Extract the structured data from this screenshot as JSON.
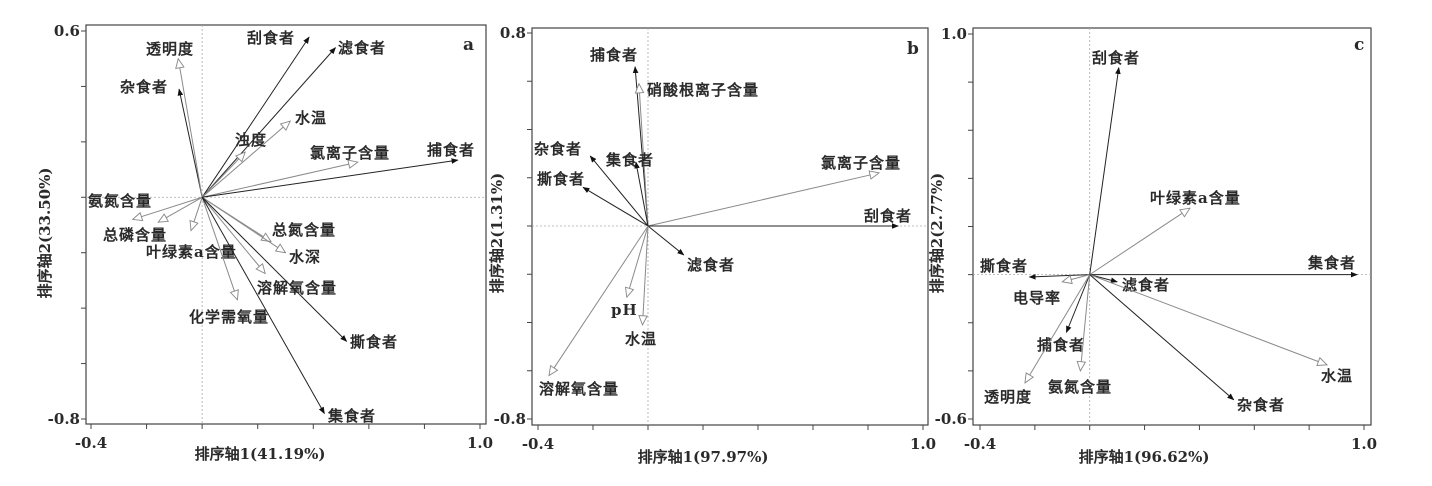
{
  "chart_data": [
    {
      "type": "scatter",
      "subtype": "rda-biplot",
      "panel_label": "a",
      "xlabel": "排序轴1(41.19%)",
      "ylabel": "排序轴2(33.50%)",
      "xlim": [
        -0.4,
        1.0
      ],
      "ylim": [
        -0.8,
        0.6
      ],
      "x_tick_labels": [
        "-0.4",
        "1.0"
      ],
      "y_tick_labels": [
        "0.6",
        "-0.8"
      ],
      "vectors": [
        {
          "name": "刮食者",
          "x": 0.385,
          "y": 0.578,
          "kind": "species"
        },
        {
          "name": "滤食者",
          "x": 0.48,
          "y": 0.54,
          "kind": "species"
        },
        {
          "name": "杂食者",
          "x": -0.083,
          "y": 0.39,
          "kind": "species"
        },
        {
          "name": "透明度",
          "x": -0.086,
          "y": 0.5,
          "kind": "environment"
        },
        {
          "name": "水温",
          "x": 0.317,
          "y": 0.275,
          "kind": "environment"
        },
        {
          "name": "浊度",
          "x": 0.155,
          "y": 0.163,
          "kind": "environment"
        },
        {
          "name": "氯离子含量",
          "x": 0.56,
          "y": 0.127,
          "kind": "environment"
        },
        {
          "name": "捕食者",
          "x": 0.92,
          "y": 0.134,
          "kind": "species"
        },
        {
          "name": "氨氮含量",
          "x": -0.25,
          "y": -0.08,
          "kind": "environment"
        },
        {
          "name": "总磷含量",
          "x": -0.158,
          "y": -0.09,
          "kind": "environment"
        },
        {
          "name": "叶绿素a含量",
          "x": -0.04,
          "y": -0.12,
          "kind": "environment"
        },
        {
          "name": "总氮含量",
          "x": 0.248,
          "y": -0.16,
          "kind": "environment"
        },
        {
          "name": "水深",
          "x": 0.3,
          "y": -0.2,
          "kind": "environment"
        },
        {
          "name": "溶解氧含量",
          "x": 0.227,
          "y": -0.275,
          "kind": "environment"
        },
        {
          "name": "化学需氧量",
          "x": 0.127,
          "y": -0.37,
          "kind": "environment"
        },
        {
          "name": "撕食者",
          "x": 0.52,
          "y": -0.52,
          "kind": "species"
        },
        {
          "name": "集食者",
          "x": 0.44,
          "y": -0.78,
          "kind": "species"
        }
      ]
    },
    {
      "type": "scatter",
      "subtype": "rda-biplot",
      "panel_label": "b",
      "xlabel": "排序轴1(97.97%)",
      "ylabel": "排序轴2(1.31%)",
      "xlim": [
        -0.4,
        1.0
      ],
      "ylim": [
        -0.8,
        0.8
      ],
      "x_tick_labels": [
        "-0.4",
        "1.0"
      ],
      "y_tick_labels": [
        "0.8",
        "-0.8"
      ],
      "vectors": [
        {
          "name": "捕食者",
          "x": -0.047,
          "y": 0.66,
          "kind": "species"
        },
        {
          "name": "硝酸根离子含量",
          "x": -0.033,
          "y": 0.59,
          "kind": "environment"
        },
        {
          "name": "杂食者",
          "x": -0.21,
          "y": 0.29,
          "kind": "species"
        },
        {
          "name": "集食者",
          "x": -0.044,
          "y": 0.265,
          "kind": "species"
        },
        {
          "name": "撕食者",
          "x": -0.236,
          "y": 0.16,
          "kind": "species"
        },
        {
          "name": "氯离子含量",
          "x": 0.84,
          "y": 0.22,
          "kind": "environment"
        },
        {
          "name": "刮食者",
          "x": 0.91,
          "y": 0.0,
          "kind": "species"
        },
        {
          "name": "滤食者",
          "x": 0.13,
          "y": -0.12,
          "kind": "species"
        },
        {
          "name": "pH",
          "x": -0.077,
          "y": -0.295,
          "kind": "environment"
        },
        {
          "name": "水温",
          "x": -0.02,
          "y": -0.41,
          "kind": "environment"
        },
        {
          "name": "溶解氧含量",
          "x": -0.36,
          "y": -0.62,
          "kind": "environment"
        }
      ]
    },
    {
      "type": "scatter",
      "subtype": "rda-biplot",
      "panel_label": "c",
      "xlabel": "排序轴1(96.62%)",
      "ylabel": "排序轴2(2.77%)",
      "xlim": [
        -0.4,
        1.0
      ],
      "ylim": [
        -0.6,
        1.0
      ],
      "x_tick_labels": [
        "-0.4",
        "1.0"
      ],
      "y_tick_labels": [
        "1.0",
        "-0.6"
      ],
      "vectors": [
        {
          "name": "刮食者",
          "x": 0.106,
          "y": 0.86,
          "kind": "species"
        },
        {
          "name": "叶绿素a含量",
          "x": 0.365,
          "y": 0.276,
          "kind": "environment"
        },
        {
          "name": "集食者",
          "x": 0.975,
          "y": 0.0,
          "kind": "species"
        },
        {
          "name": "撕食者",
          "x": -0.22,
          "y": -0.01,
          "kind": "species"
        },
        {
          "name": "电导率",
          "x": -0.1,
          "y": -0.03,
          "kind": "environment"
        },
        {
          "name": "滤食者",
          "x": 0.1,
          "y": -0.03,
          "kind": "species"
        },
        {
          "name": "水温",
          "x": 0.865,
          "y": -0.375,
          "kind": "environment"
        },
        {
          "name": "捕食者",
          "x": -0.085,
          "y": -0.24,
          "kind": "species"
        },
        {
          "name": "氨氮含量",
          "x": -0.034,
          "y": -0.4,
          "kind": "environment"
        },
        {
          "name": "透明度",
          "x": -0.236,
          "y": -0.45,
          "kind": "environment"
        },
        {
          "name": "杂食者",
          "x": 0.525,
          "y": -0.52,
          "kind": "species"
        }
      ]
    }
  ]
}
